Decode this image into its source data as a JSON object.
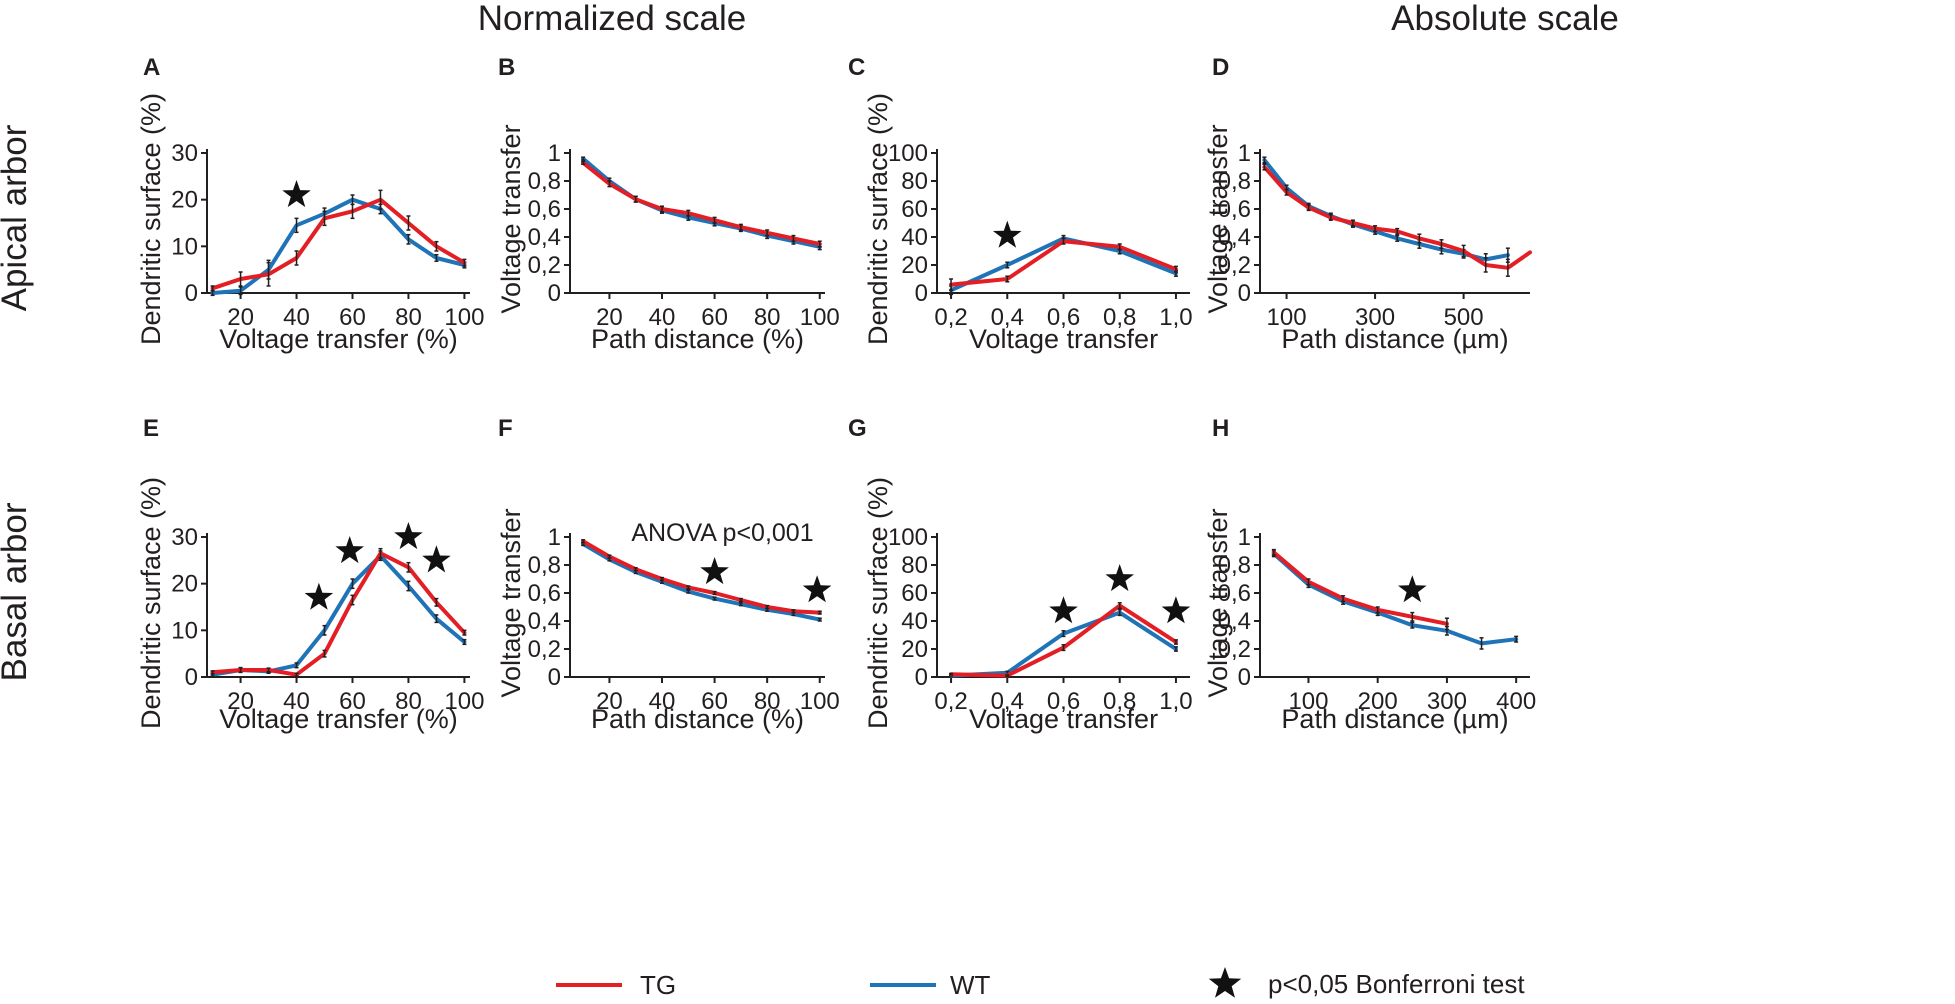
{
  "column_headers": [
    "Normalized scale",
    "Absolute scale"
  ],
  "row_headers": [
    "Apical arbor",
    "Basal arbor"
  ],
  "legend": {
    "entries": [
      {
        "label": "TG",
        "color": "#e31e24"
      },
      {
        "label": "WT",
        "color": "#1f73b7"
      }
    ],
    "star_label": "p<0,05 Bonferroni test"
  },
  "colors": {
    "TG": "#e31e24",
    "WT": "#1f73b7",
    "star": "#111111",
    "axis": "#231f20"
  },
  "chart_data": [
    {
      "panel": "A",
      "type": "line",
      "xlabel": "Voltage transfer (%)",
      "ylabel": "Dendritic surface (%)",
      "xlim": [
        8,
        102
      ],
      "ylim": [
        0,
        30
      ],
      "xticks": [
        20,
        40,
        60,
        80,
        100
      ],
      "xtick_labels": [
        "20",
        "40",
        "60",
        "80",
        "100"
      ],
      "yticks": [
        0,
        10,
        20,
        30
      ],
      "ytick_labels": [
        "0",
        "10",
        "20",
        "30"
      ],
      "series": [
        {
          "name": "WT",
          "x": [
            10,
            20,
            30,
            40,
            50,
            60,
            70,
            80,
            90,
            100
          ],
          "values": [
            0,
            0.5,
            5,
            14.5,
            17,
            20,
            18,
            11.5,
            7.5,
            6
          ],
          "err": [
            0.5,
            0.8,
            2,
            1.5,
            1.2,
            1,
            1,
            1,
            0.7,
            0.6
          ]
        },
        {
          "name": "TG",
          "x": [
            10,
            20,
            30,
            40,
            50,
            60,
            70,
            80,
            90,
            100
          ],
          "values": [
            1,
            3,
            4,
            7.5,
            16,
            17.5,
            20,
            15,
            10,
            6.5
          ],
          "err": [
            0.5,
            1.5,
            2.5,
            1.5,
            1.5,
            1.5,
            2,
            1.5,
            1,
            0.7
          ]
        }
      ],
      "stars": [
        {
          "x": 40,
          "y": 21
        }
      ],
      "annotations": []
    },
    {
      "panel": "B",
      "type": "line",
      "xlabel": "Path distance (%)",
      "ylabel": "Voltage transfer",
      "xlim": [
        5,
        102
      ],
      "ylim": [
        0,
        1
      ],
      "xticks": [
        20,
        40,
        60,
        80,
        100
      ],
      "xtick_labels": [
        "20",
        "40",
        "60",
        "80",
        "100"
      ],
      "yticks": [
        0,
        0.2,
        0.4,
        0.6,
        0.8,
        1
      ],
      "ytick_labels": [
        "0",
        "0,2",
        "0,4",
        "0,6",
        "0,8",
        "1"
      ],
      "series": [
        {
          "name": "WT",
          "x": [
            10,
            20,
            30,
            40,
            50,
            60,
            70,
            80,
            90,
            100
          ],
          "values": [
            0.96,
            0.8,
            0.67,
            0.59,
            0.54,
            0.5,
            0.46,
            0.41,
            0.37,
            0.33
          ],
          "err": [
            0.01,
            0.02,
            0.02,
            0.02,
            0.02,
            0.02,
            0.02,
            0.02,
            0.02,
            0.02
          ]
        },
        {
          "name": "TG",
          "x": [
            10,
            20,
            30,
            40,
            50,
            60,
            70,
            80,
            90,
            100
          ],
          "values": [
            0.93,
            0.78,
            0.67,
            0.6,
            0.57,
            0.52,
            0.47,
            0.43,
            0.39,
            0.35
          ],
          "err": [
            0.01,
            0.02,
            0.02,
            0.02,
            0.02,
            0.02,
            0.02,
            0.02,
            0.02,
            0.02
          ]
        }
      ],
      "stars": [],
      "annotations": []
    },
    {
      "panel": "C",
      "type": "line",
      "xlabel": "Voltage transfer",
      "ylabel": "Dendritic surface (%)",
      "xlim": [
        0.15,
        1.05
      ],
      "ylim": [
        0,
        100
      ],
      "xticks": [
        0.2,
        0.4,
        0.6,
        0.8,
        1.0
      ],
      "xtick_labels": [
        "0,2",
        "0,4",
        "0,6",
        "0,8",
        "1,0"
      ],
      "yticks": [
        0,
        20,
        40,
        60,
        80,
        100
      ],
      "ytick_labels": [
        "0",
        "20",
        "40",
        "60",
        "80",
        "100"
      ],
      "series": [
        {
          "name": "WT",
          "x": [
            0.2,
            0.4,
            0.6,
            0.8,
            1.0
          ],
          "values": [
            2,
            20,
            39,
            30,
            14
          ],
          "err": [
            3,
            2,
            2,
            2,
            2
          ]
        },
        {
          "name": "TG",
          "x": [
            0.2,
            0.4,
            0.6,
            0.8,
            1.0
          ],
          "values": [
            6,
            10,
            37,
            33,
            17
          ],
          "err": [
            4,
            2,
            2,
            2,
            2
          ]
        }
      ],
      "stars": [
        {
          "x": 0.4,
          "y": 41
        }
      ],
      "annotations": []
    },
    {
      "panel": "D",
      "type": "line",
      "xlabel": "Path distance (µm)",
      "ylabel": "Voltage transfer",
      "xlim": [
        40,
        650
      ],
      "ylim": [
        0,
        1
      ],
      "xticks": [
        100,
        300,
        500
      ],
      "xtick_labels": [
        "100",
        "300",
        "500"
      ],
      "yticks": [
        0,
        0.2,
        0.4,
        0.6,
        0.8,
        1
      ],
      "ytick_labels": [
        "0",
        "0,2",
        "0,4",
        "0,6",
        "0,8",
        "1"
      ],
      "series": [
        {
          "name": "WT",
          "x": [
            50,
            100,
            150,
            200,
            250,
            300,
            350,
            400,
            450,
            500,
            550,
            600
          ],
          "values": [
            0.95,
            0.75,
            0.62,
            0.55,
            0.49,
            0.44,
            0.39,
            0.35,
            0.31,
            0.28,
            0.24,
            0.27
          ],
          "err": [
            0.02,
            0.02,
            0.02,
            0.02,
            0.02,
            0.02,
            0.02,
            0.03,
            0.03,
            0.03,
            0.04,
            0.05
          ]
        },
        {
          "name": "TG",
          "x": [
            50,
            100,
            150,
            200,
            250,
            300,
            350,
            400,
            450,
            500,
            550,
            600,
            650
          ],
          "values": [
            0.9,
            0.72,
            0.61,
            0.54,
            0.5,
            0.46,
            0.44,
            0.39,
            0.35,
            0.3,
            0.2,
            0.18,
            0.29
          ],
          "err": [
            0.02,
            0.02,
            0.02,
            0.02,
            0.02,
            0.02,
            0.02,
            0.03,
            0.03,
            0.04,
            0.05,
            0.06,
            0
          ]
        }
      ],
      "stars": [],
      "annotations": []
    },
    {
      "panel": "E",
      "type": "line",
      "xlabel": "Voltage transfer (%)",
      "ylabel": "Dendritic surface (%)",
      "xlim": [
        8,
        102
      ],
      "ylim": [
        0,
        30
      ],
      "xticks": [
        20,
        40,
        60,
        80,
        100
      ],
      "xtick_labels": [
        "20",
        "40",
        "60",
        "80",
        "100"
      ],
      "yticks": [
        0,
        10,
        20,
        30
      ],
      "ytick_labels": [
        "0",
        "10",
        "20",
        "30"
      ],
      "series": [
        {
          "name": "WT",
          "x": [
            10,
            20,
            30,
            40,
            50,
            60,
            70,
            80,
            90,
            100
          ],
          "values": [
            0.5,
            1.5,
            1.2,
            2.5,
            10,
            20,
            26,
            19.5,
            12.5,
            7.5
          ],
          "err": [
            0.3,
            0.5,
            0.4,
            0.5,
            1,
            1,
            1,
            1,
            0.8,
            0.5
          ]
        },
        {
          "name": "TG",
          "x": [
            10,
            20,
            30,
            40,
            50,
            60,
            70,
            80,
            90,
            100
          ],
          "values": [
            1,
            1.5,
            1.5,
            0.5,
            5,
            16.5,
            26.5,
            23.5,
            16,
            9.5
          ],
          "err": [
            0.3,
            0.5,
            0.4,
            0.3,
            0.7,
            1,
            1,
            1,
            0.8,
            0.5
          ]
        }
      ],
      "stars": [
        {
          "x": 48,
          "y": 17
        },
        {
          "x": 59,
          "y": 27
        },
        {
          "x": 80,
          "y": 30
        },
        {
          "x": 90,
          "y": 25
        }
      ],
      "annotations": []
    },
    {
      "panel": "F",
      "type": "line",
      "xlabel": "Path distance (%)",
      "ylabel": "Voltage transfer",
      "xlim": [
        5,
        102
      ],
      "ylim": [
        0,
        1
      ],
      "xticks": [
        20,
        40,
        60,
        80,
        100
      ],
      "xtick_labels": [
        "20",
        "40",
        "60",
        "80",
        "100"
      ],
      "yticks": [
        0,
        0.2,
        0.4,
        0.6,
        0.8,
        1
      ],
      "ytick_labels": [
        "0",
        "0,2",
        "0,4",
        "0,6",
        "0,8",
        "1"
      ],
      "series": [
        {
          "name": "WT",
          "x": [
            10,
            20,
            30,
            40,
            50,
            60,
            70,
            80,
            90,
            100
          ],
          "values": [
            0.95,
            0.84,
            0.75,
            0.68,
            0.61,
            0.56,
            0.52,
            0.48,
            0.45,
            0.41
          ],
          "err": [
            0.01,
            0.01,
            0.01,
            0.01,
            0.01,
            0.01,
            0.01,
            0.01,
            0.01,
            0.01
          ]
        },
        {
          "name": "TG",
          "x": [
            10,
            20,
            30,
            40,
            50,
            60,
            70,
            80,
            90,
            100
          ],
          "values": [
            0.97,
            0.86,
            0.77,
            0.7,
            0.64,
            0.6,
            0.55,
            0.5,
            0.47,
            0.46
          ],
          "err": [
            0.01,
            0.01,
            0.01,
            0.01,
            0.01,
            0.01,
            0.01,
            0.01,
            0.01,
            0.01
          ]
        }
      ],
      "stars": [
        {
          "x": 60,
          "y": 0.75
        },
        {
          "x": 99,
          "y": 0.62
        }
      ],
      "annotations": [
        {
          "text": "ANOVA p<0,001",
          "x": 63,
          "y": 0.97
        }
      ]
    },
    {
      "panel": "G",
      "type": "line",
      "xlabel": "Voltage transfer",
      "ylabel": "Dendritic surface (%)",
      "xlim": [
        0.15,
        1.05
      ],
      "ylim": [
        0,
        100
      ],
      "xticks": [
        0.2,
        0.4,
        0.6,
        0.8,
        1.0
      ],
      "xtick_labels": [
        "0,2",
        "0,4",
        "0,6",
        "0,8",
        "1,0"
      ],
      "yticks": [
        0,
        20,
        40,
        60,
        80,
        100
      ],
      "ytick_labels": [
        "0",
        "20",
        "40",
        "60",
        "80",
        "100"
      ],
      "series": [
        {
          "name": "WT",
          "x": [
            0.2,
            0.4,
            0.6,
            0.8,
            1.0
          ],
          "values": [
            1,
            3,
            31,
            46,
            20
          ],
          "err": [
            0.5,
            1,
            2,
            2,
            1.5
          ]
        },
        {
          "name": "TG",
          "x": [
            0.2,
            0.4,
            0.6,
            0.8,
            1.0
          ],
          "values": [
            2,
            1,
            21,
            51,
            25
          ],
          "err": [
            0.5,
            0.5,
            2,
            2,
            1.5
          ]
        }
      ],
      "stars": [
        {
          "x": 0.6,
          "y": 47
        },
        {
          "x": 0.8,
          "y": 70
        },
        {
          "x": 1.0,
          "y": 47
        }
      ],
      "annotations": []
    },
    {
      "panel": "H",
      "type": "line",
      "xlabel": "Path distance (µm)",
      "ylabel": "Voltage transfer",
      "xlim": [
        30,
        420
      ],
      "ylim": [
        0,
        1
      ],
      "xticks": [
        100,
        200,
        300,
        400
      ],
      "xtick_labels": [
        "100",
        "200",
        "300",
        "400"
      ],
      "yticks": [
        0,
        0.2,
        0.4,
        0.6,
        0.8,
        1
      ],
      "ytick_labels": [
        "0",
        "0,2",
        "0,4",
        "0,6",
        "0,8",
        "1"
      ],
      "series": [
        {
          "name": "WT",
          "x": [
            50,
            100,
            150,
            200,
            250,
            300,
            350,
            400
          ],
          "values": [
            0.88,
            0.66,
            0.54,
            0.46,
            0.37,
            0.33,
            0.24,
            0.27
          ],
          "err": [
            0.02,
            0.02,
            0.02,
            0.02,
            0.02,
            0.03,
            0.04,
            0.02
          ]
        },
        {
          "name": "TG",
          "x": [
            50,
            100,
            150,
            200,
            250,
            300
          ],
          "values": [
            0.89,
            0.68,
            0.56,
            0.48,
            0.43,
            0.38
          ],
          "err": [
            0.02,
            0.02,
            0.02,
            0.02,
            0.03,
            0.04
          ]
        }
      ],
      "stars": [
        {
          "x": 250,
          "y": 0.62
        }
      ],
      "annotations": []
    }
  ]
}
